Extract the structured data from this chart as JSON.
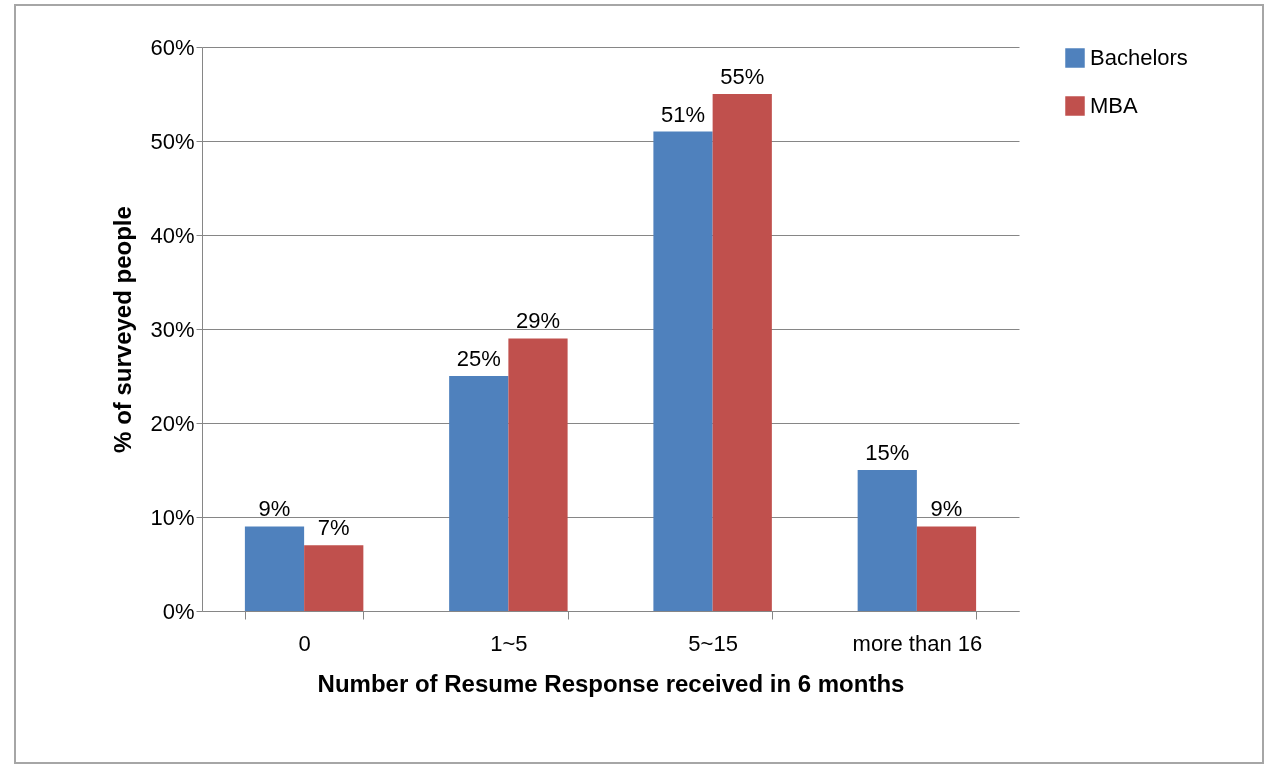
{
  "chart_data": {
    "type": "bar",
    "xlabel": "Number of Resume Response received in 6 months",
    "ylabel": "% of surveyed people",
    "categories": [
      "0",
      "1~5",
      "5~15",
      "more than 16"
    ],
    "series": [
      {
        "name": "Bachelors",
        "color": "#4f81bd",
        "values": [
          9,
          25,
          51,
          15
        ],
        "value_labels": [
          "9%",
          "25%",
          "51%",
          "15%"
        ]
      },
      {
        "name": "MBA",
        "color": "#c0504d",
        "values": [
          7,
          29,
          55,
          9
        ],
        "value_labels": [
          "7%",
          "29%",
          "55%",
          "9%"
        ]
      }
    ],
    "ylim": [
      0,
      60
    ],
    "yticks": [
      {
        "value": 0,
        "label": "0%"
      },
      {
        "value": 10,
        "label": "10%"
      },
      {
        "value": 20,
        "label": "20%"
      },
      {
        "value": 30,
        "label": "30%"
      },
      {
        "value": 40,
        "label": "40%"
      },
      {
        "value": 50,
        "label": "50%"
      },
      {
        "value": 60,
        "label": "60%"
      }
    ],
    "grid": "y",
    "legend": "right"
  }
}
